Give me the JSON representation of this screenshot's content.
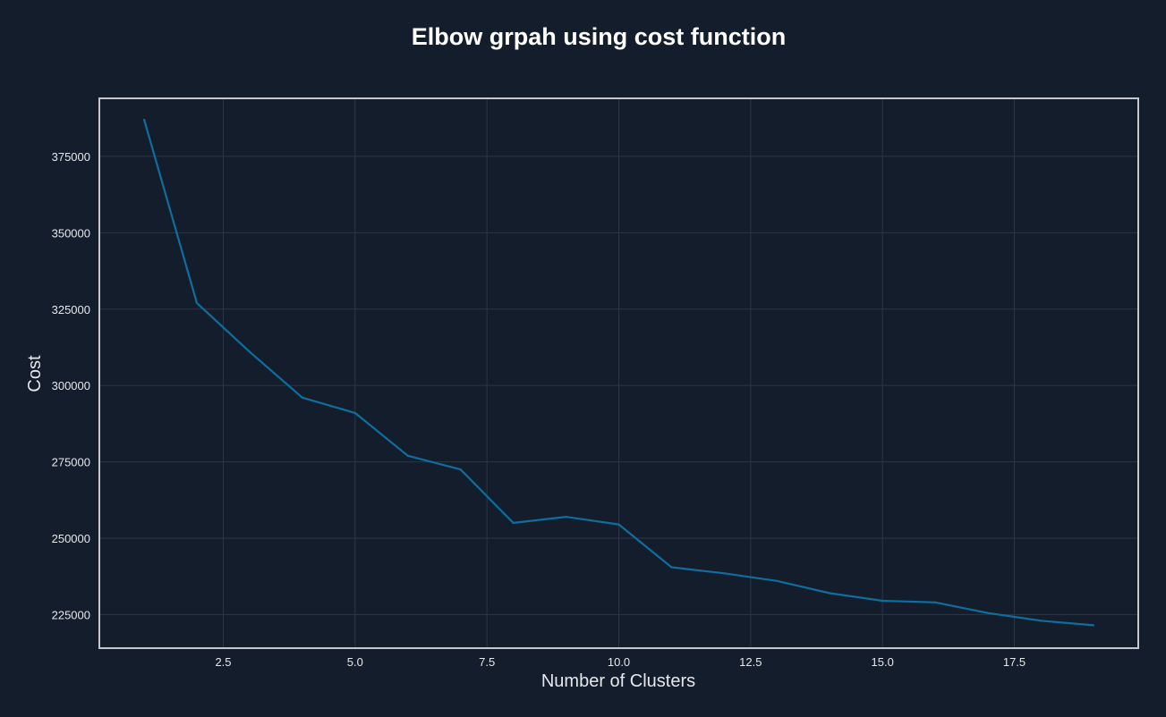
{
  "chart_data": {
    "type": "line",
    "title": "Elbow grpah using cost function",
    "xlabel": "Number of Clusters",
    "ylabel": "Cost",
    "xlim": [
      0.15,
      19.85
    ],
    "ylim": [
      214000,
      394000
    ],
    "xticks": [
      2.5,
      5.0,
      7.5,
      10.0,
      12.5,
      15.0,
      17.5
    ],
    "xtick_labels": [
      "2.5",
      "5.0",
      "7.5",
      "10.0",
      "12.5",
      "15.0",
      "17.5"
    ],
    "yticks": [
      225000,
      250000,
      275000,
      300000,
      325000,
      350000,
      375000
    ],
    "ytick_labels": [
      "225000",
      "250000",
      "275000",
      "300000",
      "325000",
      "350000",
      "375000"
    ],
    "grid": true,
    "series": [
      {
        "color": "#0f6e9e",
        "x": [
          1,
          2,
          3,
          4,
          5,
          6,
          7,
          8,
          9,
          10,
          11,
          12,
          13,
          14,
          15,
          16,
          17,
          18,
          19
        ],
        "y": [
          387000,
          327000,
          311000,
          296000,
          291000,
          277000,
          272500,
          255000,
          257000,
          254500,
          240500,
          238500,
          236000,
          232000,
          229500,
          229000,
          225500,
          223000,
          221500
        ]
      }
    ]
  },
  "theme": {
    "background": "#141d2b",
    "grid_color": "#2c3744",
    "frame_color": "#c4c8cc",
    "text_color": "#e6e8ec",
    "title_color": "#ffffff"
  }
}
